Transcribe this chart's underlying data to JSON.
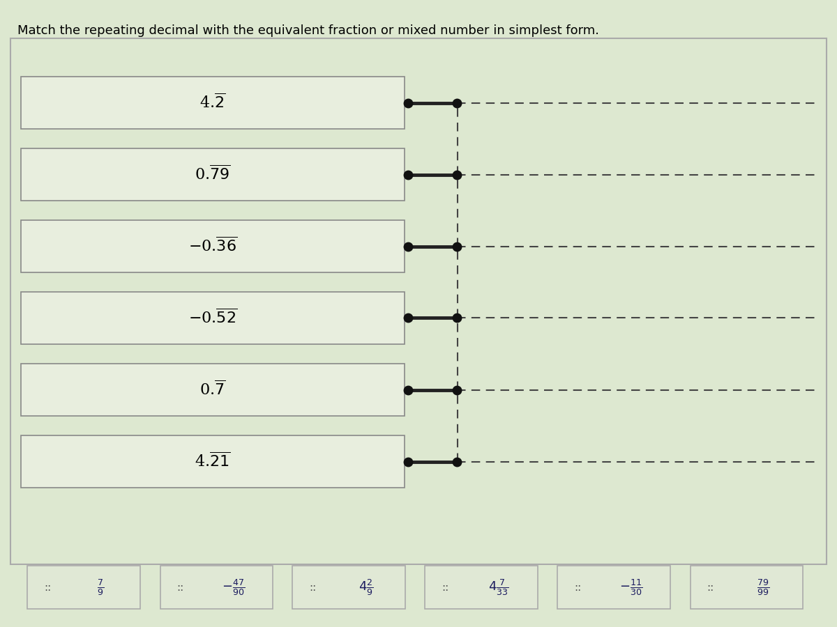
{
  "title": "Match the repeating decimal with the equivalent fraction or mixed number in simplest form.",
  "title_fontsize": 13,
  "bg_color": "#dde8d0",
  "box_color": "#c8d8b8",
  "box_edge_color": "#888888",
  "left_labels": [
    "4.$\\overline{2}$",
    "0.$\\overline{79}$",
    "$-$0.$\\overline{36}$",
    "$-$0.$\\overline{52}$",
    "0.$\\overline{7}$",
    "4.$\\overline{21}$"
  ],
  "bottom_fractions": [
    "$\\frac{7}{9}$",
    "$-\\frac{47}{90}$",
    "$4\\frac{2}{9}$",
    "$4\\frac{7}{33}$",
    "$-\\frac{11}{30}$",
    "$\\frac{79}{99}$"
  ],
  "connector_color": "#222222",
  "dashed_color": "#444444",
  "dot_color": "#111111"
}
